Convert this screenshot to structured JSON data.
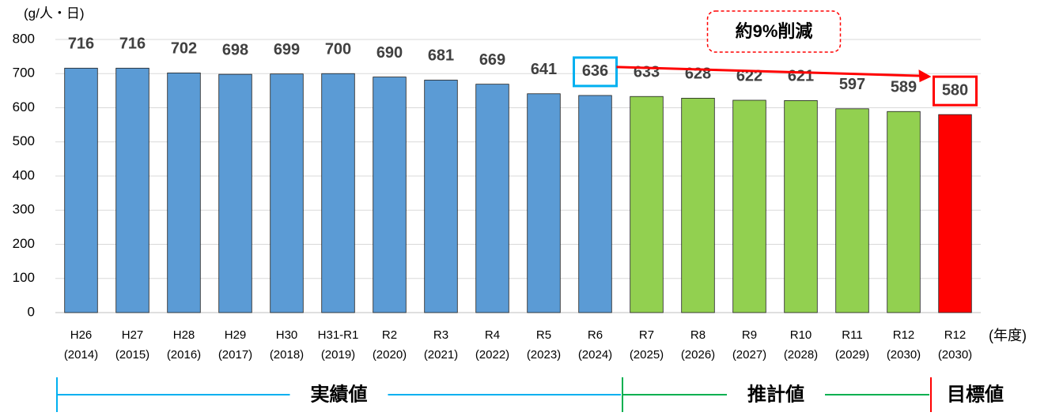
{
  "chart_data": {
    "type": "bar",
    "y_label": "(g/人・日)",
    "x_label": "(年度)",
    "categories": [
      [
        "H26",
        "(2014)"
      ],
      [
        "H27",
        "(2015)"
      ],
      [
        "H28",
        "(2016)"
      ],
      [
        "H29",
        "(2017)"
      ],
      [
        "H30",
        "(2018)"
      ],
      [
        "H31-R1",
        "(2019)"
      ],
      [
        "R2",
        "(2020)"
      ],
      [
        "R3",
        "(2021)"
      ],
      [
        "R4",
        "(2022)"
      ],
      [
        "R5",
        "(2023)"
      ],
      [
        "R6",
        "(2024)"
      ],
      [
        "R7",
        "(2025)"
      ],
      [
        "R8",
        "(2026)"
      ],
      [
        "R9",
        "(2027)"
      ],
      [
        "R10",
        "(2028)"
      ],
      [
        "R11",
        "(2029)"
      ],
      [
        "R12",
        "(2030)"
      ],
      [
        "R12",
        "(2030)"
      ]
    ],
    "values": [
      716,
      716,
      702,
      698,
      699,
      700,
      690,
      681,
      669,
      641,
      636,
      633,
      628,
      622,
      621,
      597,
      589,
      580
    ],
    "colors": [
      "#5b9bd5",
      "#5b9bd5",
      "#5b9bd5",
      "#5b9bd5",
      "#5b9bd5",
      "#5b9bd5",
      "#5b9bd5",
      "#5b9bd5",
      "#5b9bd5",
      "#5b9bd5",
      "#5b9bd5",
      "#92d050",
      "#92d050",
      "#92d050",
      "#92d050",
      "#92d050",
      "#92d050",
      "#ff0000"
    ],
    "ylim": [
      0,
      800
    ],
    "yticks": [
      0,
      100,
      200,
      300,
      400,
      500,
      600,
      700,
      800
    ],
    "grid": true,
    "boxed_labels": [
      {
        "index": 10,
        "color": "#00b0f0"
      },
      {
        "index": 17,
        "color": "#ff0000"
      }
    ],
    "annotation": {
      "text": "約9%削減",
      "color": "#ff0000"
    },
    "periods": [
      {
        "label": "実績値",
        "color": "#00b0f0",
        "from": 0,
        "to": 11
      },
      {
        "label": "推計値",
        "color": "#00b050",
        "from": 11,
        "to": 17
      },
      {
        "label": "目標値",
        "color": "#ff0000",
        "from": 17,
        "to": 18
      }
    ]
  }
}
